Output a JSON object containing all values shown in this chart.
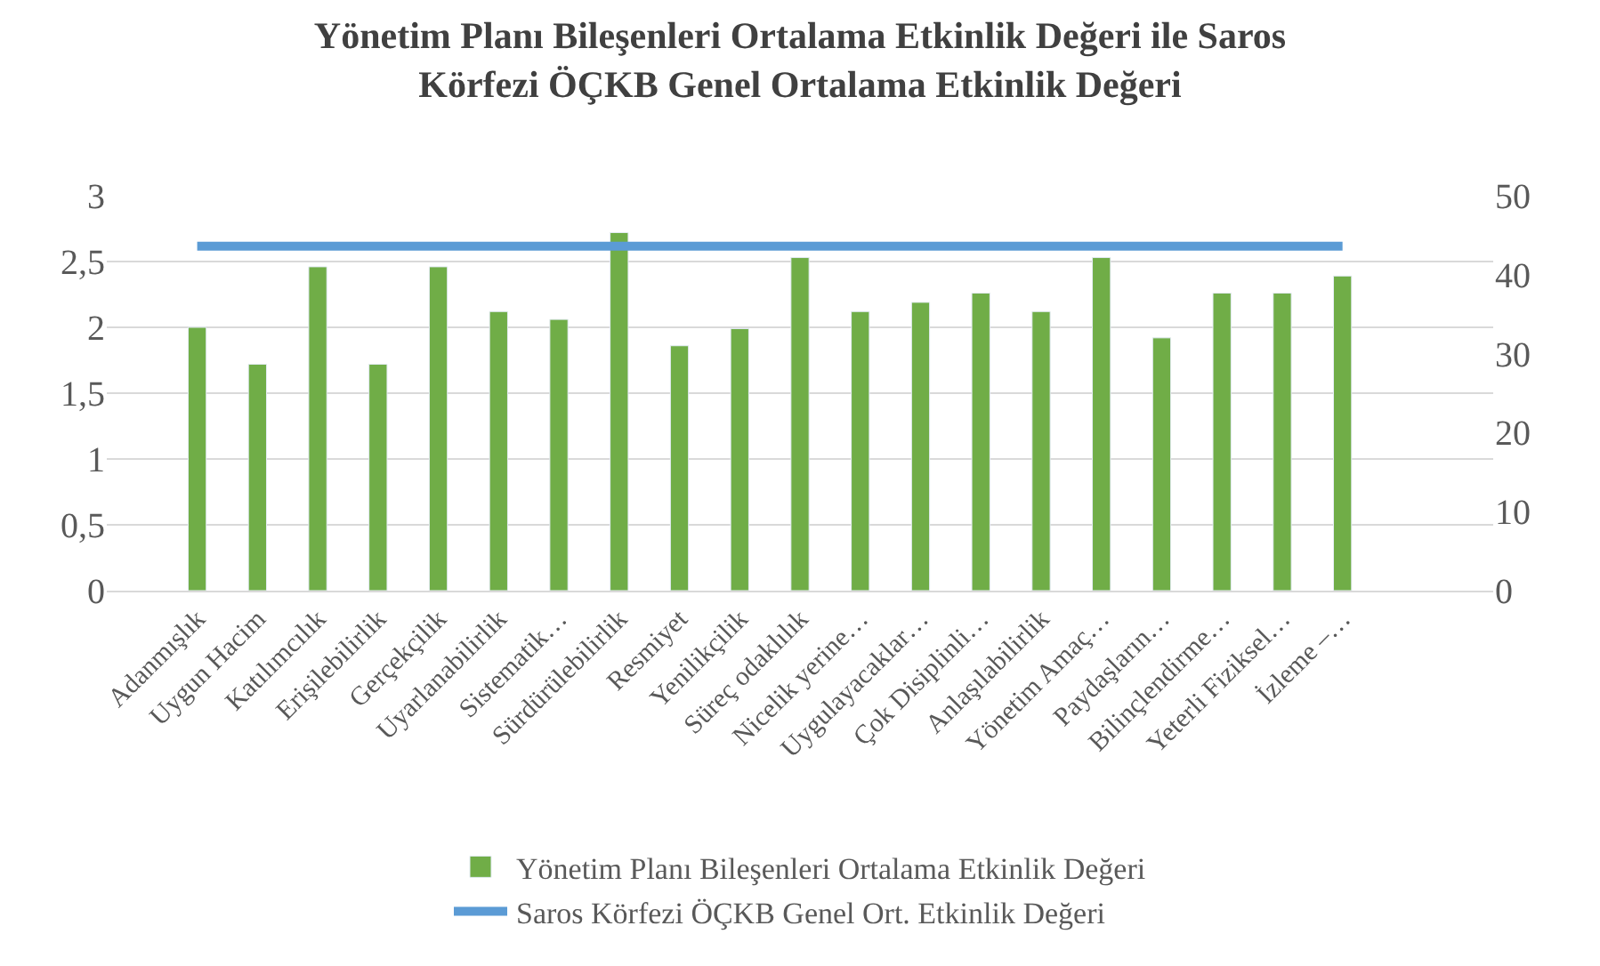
{
  "chart_data": {
    "type": "bar",
    "title": "Yönetim Planı Bileşenleri Ortalama Etkinlik Değeri ile Saros\nKörfezi ÖÇKB Genel Ortalama Etkinlik Değeri",
    "categories": [
      null,
      "Adanmışlık",
      "Uygun Hacim",
      "Katılımcılık",
      "Erişilebilirlik",
      "Gerçekçilik",
      "Uyarlanabilirlik",
      "Sistematik…",
      "Sürdürülebilirlik",
      "Resmiyet",
      "Yenilikçilik",
      "Süreç odaklılık",
      "Nicelik yerine…",
      "Uygulayacaklar…",
      "Çok Disiplinli…",
      "Anlaşılabilirlik",
      "Yönetim Amaç…",
      "Paydaşların…",
      "Bilinçlendirme…",
      "Yeterli Fiziksel…",
      "İzleme –…",
      null,
      null
    ],
    "series": [
      {
        "name": "Yönetim Planı Bileşenleri Ortalama Etkinlik Değeri",
        "color": "#70ad47",
        "values": [
          null,
          2.0,
          1.72,
          2.46,
          1.72,
          2.46,
          2.12,
          2.06,
          2.72,
          1.86,
          1.99,
          2.53,
          2.12,
          2.19,
          2.26,
          2.12,
          2.53,
          1.92,
          2.26,
          2.26,
          2.39,
          null,
          null
        ]
      },
      {
        "name": "Saros Körfezi ÖÇKB Genel Ort. Etkinlik Değeri",
        "type": "line",
        "axis": "y2",
        "color": "#5b9bd5",
        "values": [
          null,
          43.6,
          43.6,
          43.6,
          43.6,
          43.6,
          43.6,
          43.6,
          43.6,
          43.6,
          43.6,
          43.6,
          43.6,
          43.6,
          43.6,
          43.6,
          43.6,
          43.6,
          43.6,
          43.6,
          43.6,
          null,
          null
        ]
      }
    ],
    "ylim": [
      0,
      3
    ],
    "yticks": [
      0,
      {
        "value": 0.5,
        "label": "0,5"
      },
      1,
      {
        "value": 1.5,
        "label": "1,5"
      },
      2,
      {
        "value": 2.5,
        "label": "2,5"
      },
      3
    ],
    "y2lim": [
      0,
      50
    ],
    "y2ticks": [
      0,
      10,
      20,
      30,
      40,
      50
    ],
    "grid": "y",
    "legend": "bottom",
    "marker": "none",
    "line_style": "solid"
  }
}
